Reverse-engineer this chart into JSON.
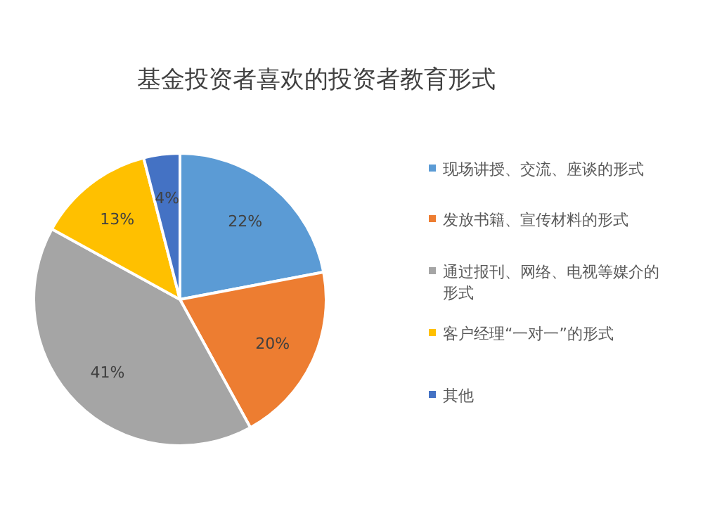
{
  "chart_data": {
    "type": "pie",
    "title": "基金投资者喜欢的投资者教育形式",
    "categories": [
      "现场讲授、交流、座谈的形式",
      "发放书籍、宣传材料的形式",
      "通过报刊、网络、电视等媒介的形式",
      "客户经理“一对一”的形式",
      "其他"
    ],
    "values": [
      22,
      20,
      41,
      13,
      4
    ],
    "colors": [
      "#5b9bd5",
      "#ed7d31",
      "#a5a5a5",
      "#ffc000",
      "#4472c4"
    ],
    "value_labels": [
      "22%",
      "20%",
      "41%",
      "13%",
      "4%"
    ],
    "legend": "right"
  }
}
